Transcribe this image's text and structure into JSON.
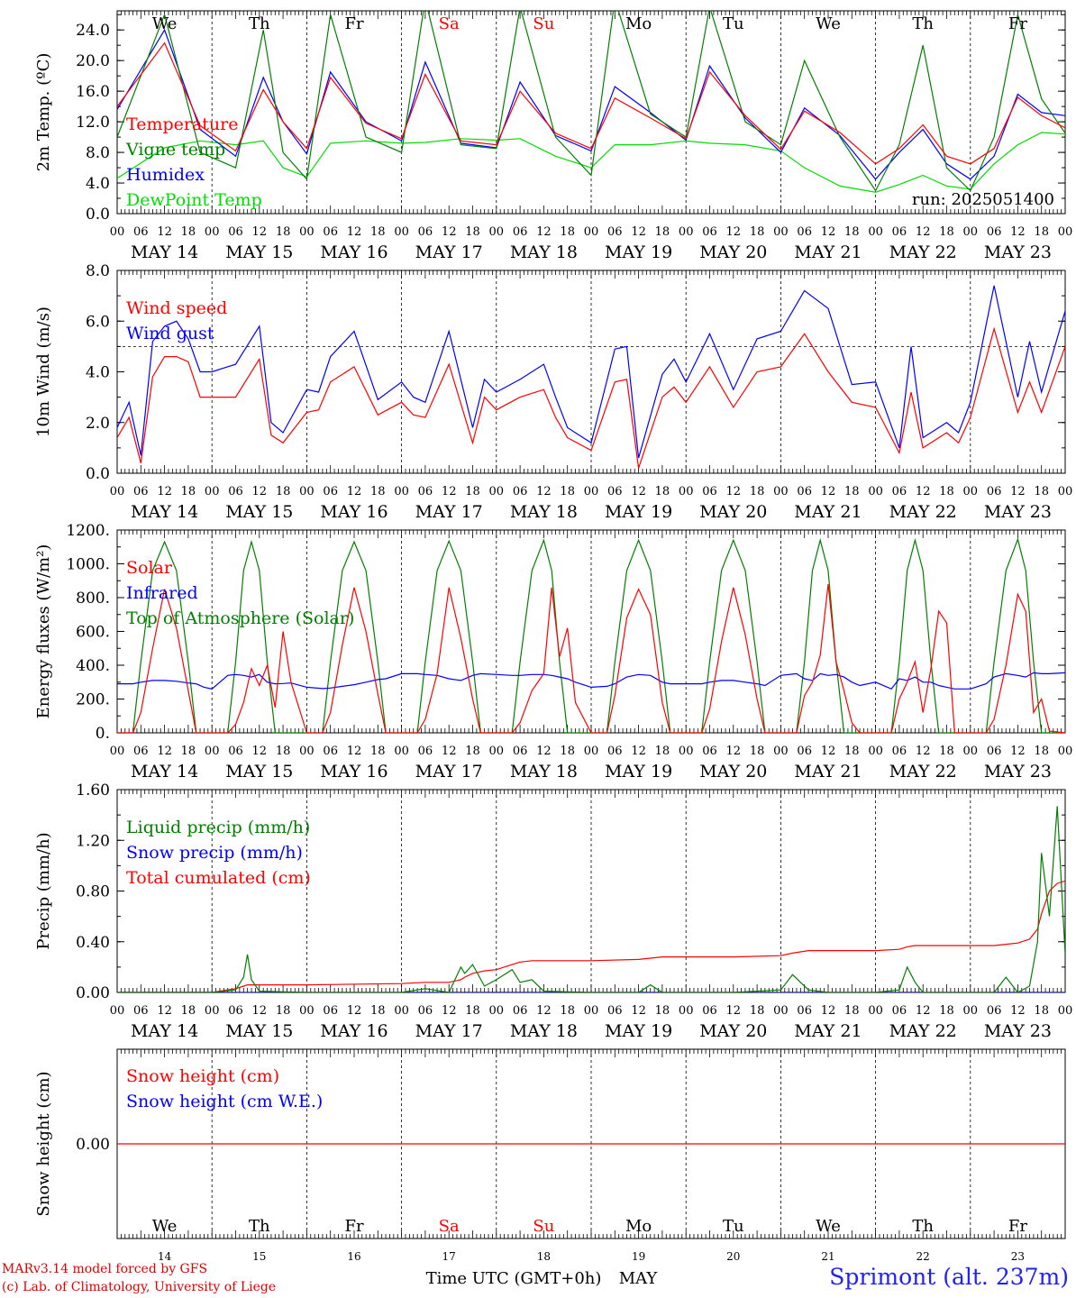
{
  "run_label": "run: 2025051400",
  "dates": [
    "MAY 14",
    "MAY 15",
    "MAY 16",
    "MAY 17",
    "MAY 18",
    "MAY 19",
    "MAY 20",
    "MAY 21",
    "MAY 22",
    "MAY 23"
  ],
  "day_names": [
    "We",
    "Th",
    "Fr",
    "Sa",
    "Su",
    "Mo",
    "Tu",
    "We",
    "Th",
    "Fr"
  ],
  "day_numbers": [
    "14",
    "15",
    "16",
    "17",
    "18",
    "19",
    "20",
    "21",
    "22",
    "23"
  ],
  "hour_labels": [
    "00",
    "06",
    "12",
    "18"
  ],
  "x_axis_title": "Time UTC (GMT+0h)",
  "x_axis_month": "MAY",
  "credit_line1": "MARv3.14 model forced by GFS",
  "credit_line2": "(c) Lab. of Climatology, University of Liege",
  "station": "Sprimont (alt. 237m)",
  "colors": {
    "red": "#ff0000",
    "green": "#008000",
    "blue": "#0000ff",
    "lightgreen": "#00dd00",
    "weekend": "#ff0000"
  },
  "chart_data": [
    {
      "type": "line",
      "ylabel": "2m Temp. (ºC)",
      "ylim": [
        0,
        26.5
      ],
      "yticks": [
        "0.0",
        "4.0",
        "8.0",
        "12.0",
        "16.0",
        "20.0",
        "24.0"
      ],
      "yticks_values": [
        0,
        4,
        8,
        12,
        16,
        20,
        24
      ],
      "hline": null,
      "x_hours": [
        0,
        12,
        21,
        30,
        37,
        42,
        48,
        54,
        63,
        72,
        78,
        87,
        96,
        102,
        111,
        120,
        126,
        135,
        144,
        150,
        159,
        168,
        174,
        183,
        192,
        198,
        204,
        210,
        216,
        222,
        228,
        234,
        240
      ],
      "series": [
        {
          "name": "Temperature",
          "color": "red",
          "values": [
            14,
            22.3,
            11.5,
            8.2,
            16.2,
            12,
            8.5,
            17.8,
            11.8,
            9.8,
            18.2,
            9.5,
            9,
            16,
            10.5,
            8.5,
            15.1,
            12.5,
            9.8,
            18.5,
            12.8,
            8.4,
            13.4,
            10.6,
            6.5,
            8.5,
            11.6,
            7.5,
            6.5,
            8.5,
            15.2,
            12.8,
            11.2
          ]
        },
        {
          "name": "Vigne temp",
          "color": "green",
          "values": [
            10,
            26,
            8,
            6,
            24,
            8,
            4.5,
            26,
            10,
            8,
            28,
            9,
            8.5,
            27,
            10,
            5,
            28,
            13,
            10,
            27,
            12,
            9,
            20,
            10,
            3,
            9,
            22,
            6,
            3,
            10,
            26,
            15,
            10.5
          ]
        },
        {
          "name": "Humidex",
          "color": "blue",
          "values": [
            13.6,
            24,
            11,
            7.5,
            17.8,
            12,
            7.8,
            18.5,
            12,
            9.5,
            19.8,
            9.2,
            8.6,
            17.2,
            10.2,
            8.2,
            16.6,
            13.2,
            9.6,
            19.3,
            12.5,
            8,
            13.8,
            10.2,
            4.5,
            8,
            11,
            6.5,
            4.5,
            7.5,
            15.6,
            13.2,
            12.8
          ]
        },
        {
          "name": "DewPoint Temp",
          "color": "lightgreen",
          "values": [
            4.6,
            8.6,
            9.5,
            9,
            9.5,
            6,
            4.8,
            9.2,
            9.5,
            9.2,
            9.3,
            9.8,
            9.6,
            9.8,
            7.5,
            6,
            9,
            9,
            9.5,
            9.2,
            9,
            8.2,
            6,
            3.6,
            2.8,
            3.8,
            5,
            3.6,
            3.2,
            6.5,
            9,
            10.6,
            10.4
          ]
        }
      ]
    },
    {
      "type": "line",
      "ylabel": "10m Wind (m/s)",
      "ylim": [
        0,
        8
      ],
      "yticks": [
        "0.0",
        "2.0",
        "4.0",
        "6.0",
        "8.0"
      ],
      "yticks_values": [
        0,
        2,
        4,
        6,
        8
      ],
      "hline": 5,
      "x_hours": [
        0,
        3,
        6,
        9,
        12,
        15,
        18,
        21,
        24,
        30,
        36,
        39,
        42,
        48,
        51,
        54,
        60,
        66,
        72,
        75,
        78,
        84,
        90,
        93,
        96,
        102,
        108,
        111,
        114,
        120,
        126,
        129,
        132,
        138,
        141,
        144,
        150,
        156,
        162,
        168,
        174,
        180,
        186,
        192,
        198,
        201,
        204,
        210,
        213,
        216,
        222,
        228,
        231,
        234,
        240
      ],
      "series": [
        {
          "name": "Wind speed",
          "color": "red",
          "values": [
            1.4,
            2.2,
            0.4,
            3.8,
            4.6,
            4.6,
            4.4,
            3,
            3,
            3,
            4.5,
            1.5,
            1.2,
            2.4,
            2.5,
            3.6,
            4.2,
            2.3,
            2.8,
            2.3,
            2.2,
            4.3,
            1.2,
            3,
            2.5,
            3,
            3.3,
            2.2,
            1.4,
            0.9,
            3.6,
            3.7,
            0.2,
            3,
            3.4,
            2.8,
            4.2,
            2.6,
            4,
            4.2,
            5.5,
            4,
            2.8,
            2.6,
            0.8,
            3.2,
            1,
            1.6,
            1.2,
            2.2,
            5.7,
            2.4,
            3.6,
            2.4,
            5
          ]
        },
        {
          "name": "Wind gust",
          "color": "blue",
          "values": [
            1.8,
            2.8,
            0.7,
            5.2,
            5.8,
            6,
            5.3,
            4,
            4,
            4.3,
            5.8,
            2,
            1.6,
            3.3,
            3.2,
            4.6,
            5.6,
            2.9,
            3.6,
            3,
            2.8,
            5.6,
            1.8,
            3.7,
            3.2,
            3.7,
            4.3,
            3,
            1.8,
            1.2,
            4.9,
            5,
            0.6,
            3.9,
            4.5,
            3.6,
            5.5,
            3.3,
            5.3,
            5.6,
            7.2,
            6.5,
            3.5,
            3.6,
            1,
            5,
            1.4,
            2,
            1.6,
            2.8,
            7.4,
            3,
            5.2,
            3.2,
            6.4
          ]
        }
      ]
    },
    {
      "type": "line",
      "ylabel": "Energy fluxes (W/m²)",
      "ylim": [
        0,
        1200
      ],
      "yticks": [
        "0.",
        "200.",
        "400.",
        "600.",
        "800.",
        "1000.",
        "1200."
      ],
      "yticks_values": [
        0,
        200,
        400,
        600,
        800,
        1000,
        1200
      ],
      "hline": null,
      "x_hours": [
        0,
        4,
        6,
        9,
        12,
        15,
        18,
        20,
        22,
        24,
        28,
        30,
        32,
        34,
        36,
        38,
        40,
        42,
        44,
        48,
        52,
        54,
        57,
        60,
        63,
        66,
        68,
        72,
        76,
        78,
        81,
        84,
        87,
        90,
        92,
        96,
        100,
        102,
        105,
        108,
        110,
        112,
        114,
        116,
        120,
        124,
        126,
        129,
        132,
        135,
        138,
        140,
        144,
        148,
        150,
        153,
        156,
        159,
        162,
        164,
        168,
        172,
        174,
        176,
        178,
        180,
        182,
        184,
        186,
        188,
        192,
        196,
        198,
        200,
        202,
        204,
        206,
        208,
        210,
        212,
        216,
        220,
        222,
        225,
        228,
        230,
        232,
        234,
        236,
        240
      ],
      "series": [
        {
          "name": "Solar",
          "color": "red",
          "values": [
            0,
            0,
            120,
            500,
            850,
            620,
            250,
            0,
            0,
            0,
            0,
            50,
            180,
            380,
            280,
            400,
            150,
            600,
            300,
            0,
            0,
            120,
            520,
            860,
            600,
            230,
            0,
            0,
            0,
            80,
            350,
            860,
            560,
            200,
            0,
            0,
            0,
            60,
            250,
            350,
            860,
            450,
            620,
            180,
            0,
            0,
            220,
            680,
            850,
            700,
            180,
            0,
            0,
            0,
            140,
            540,
            860,
            580,
            200,
            0,
            0,
            0,
            220,
            300,
            460,
            880,
            420,
            250,
            60,
            0,
            0,
            0,
            200,
            300,
            420,
            120,
            380,
            720,
            650,
            0,
            0,
            0,
            80,
            400,
            820,
            720,
            120,
            200,
            10,
            0
          ]
        },
        {
          "name": "Infrared",
          "color": "blue",
          "values": [
            290,
            290,
            300,
            310,
            310,
            305,
            295,
            290,
            270,
            260,
            340,
            345,
            340,
            330,
            345,
            300,
            290,
            292,
            295,
            270,
            262,
            265,
            275,
            285,
            300,
            315,
            320,
            350,
            350,
            345,
            340,
            320,
            310,
            340,
            350,
            345,
            340,
            340,
            345,
            345,
            340,
            330,
            320,
            300,
            270,
            275,
            290,
            330,
            345,
            340,
            300,
            290,
            290,
            290,
            300,
            310,
            310,
            300,
            290,
            280,
            340,
            350,
            320,
            310,
            350,
            340,
            345,
            330,
            300,
            280,
            300,
            260,
            320,
            310,
            330,
            300,
            300,
            280,
            270,
            260,
            260,
            290,
            330,
            350,
            340,
            330,
            355,
            350,
            350,
            355
          ]
        },
        {
          "name": "Top of Atmosphere (Solar)",
          "color": "green",
          "values": [
            0,
            0,
            420,
            960,
            1130,
            960,
            420,
            0,
            0,
            0,
            0,
            420,
            960,
            1130,
            960,
            420,
            0,
            0,
            0,
            0,
            0,
            420,
            960,
            1130,
            960,
            420,
            0,
            0,
            0,
            420,
            960,
            1135,
            960,
            420,
            0,
            0,
            0,
            420,
            960,
            1140,
            960,
            420,
            0,
            0,
            0,
            0,
            420,
            960,
            1140,
            960,
            420,
            0,
            0,
            0,
            420,
            960,
            1140,
            960,
            420,
            0,
            0,
            0,
            420,
            960,
            1140,
            960,
            420,
            0,
            0,
            0,
            0,
            0,
            420,
            960,
            1140,
            960,
            420,
            0,
            0,
            0,
            0,
            0,
            420,
            960,
            1145,
            960,
            420,
            0,
            0,
            0
          ]
        }
      ]
    },
    {
      "type": "line",
      "ylabel": "Precip (mm/h)",
      "ylim": [
        0,
        1.6
      ],
      "yticks": [
        "0.00",
        "0.40",
        "0.80",
        "1.20",
        "1.60"
      ],
      "yticks_values": [
        0,
        0.4,
        0.8,
        1.2,
        1.6
      ],
      "hline": null,
      "x_hours": [
        0,
        24,
        30,
        32,
        33,
        34,
        36,
        48,
        72,
        78,
        84,
        87,
        88,
        90,
        93,
        96,
        100,
        102,
        105,
        108,
        120,
        132,
        135,
        138,
        144,
        156,
        168,
        171,
        173,
        175,
        180,
        192,
        198,
        200,
        202,
        204,
        216,
        222,
        225,
        228,
        231,
        233,
        234,
        236,
        238,
        240
      ],
      "series": [
        {
          "name": "Liquid precip (mm/h)",
          "color": "green",
          "values": [
            0,
            0,
            0.02,
            0.12,
            0.3,
            0.1,
            0.01,
            0,
            0,
            0.03,
            0,
            0.2,
            0.15,
            0.22,
            0.05,
            0.1,
            0.18,
            0.08,
            0.1,
            0.01,
            0,
            0,
            0.06,
            0,
            0,
            0,
            0.02,
            0.14,
            0.08,
            0.02,
            0,
            0,
            0.02,
            0.2,
            0.08,
            0,
            0,
            0,
            0.12,
            0,
            0.05,
            0.4,
            1.1,
            0.6,
            1.47,
            0.3
          ]
        },
        {
          "name": "Snow precip (mm/h)",
          "color": "blue",
          "values": [
            0,
            0,
            0,
            0,
            0,
            0,
            0,
            0,
            0,
            0,
            0,
            0,
            0,
            0,
            0,
            0,
            0,
            0,
            0,
            0,
            0,
            0,
            0,
            0,
            0,
            0,
            0,
            0,
            0,
            0,
            0,
            0,
            0,
            0,
            0,
            0,
            0,
            0,
            0,
            0,
            0,
            0,
            0,
            0,
            0,
            0
          ]
        },
        {
          "name": "Total cumulated (cm)",
          "color": "red",
          "values": [
            0,
            0,
            0.03,
            0.05,
            0.06,
            0.06,
            0.06,
            0.06,
            0.07,
            0.08,
            0.08,
            0.1,
            0.12,
            0.15,
            0.17,
            0.18,
            0.22,
            0.24,
            0.25,
            0.25,
            0.25,
            0.26,
            0.27,
            0.28,
            0.28,
            0.28,
            0.29,
            0.31,
            0.32,
            0.33,
            0.33,
            0.33,
            0.34,
            0.36,
            0.37,
            0.37,
            0.37,
            0.37,
            0.38,
            0.39,
            0.42,
            0.5,
            0.62,
            0.8,
            0.86,
            0.88
          ]
        }
      ]
    },
    {
      "type": "line",
      "ylabel": "Snow height (cm)",
      "ylim": [
        -1,
        1
      ],
      "yticks": [
        "0.00"
      ],
      "yticks_values": [
        0
      ],
      "hline": null,
      "x_hours": [
        0,
        240
      ],
      "series": [
        {
          "name": "Snow height (cm)",
          "color": "red",
          "values": [
            0,
            0
          ]
        },
        {
          "name": "Snow height (cm W.E.)",
          "color": "blue",
          "values": null
        }
      ]
    }
  ]
}
